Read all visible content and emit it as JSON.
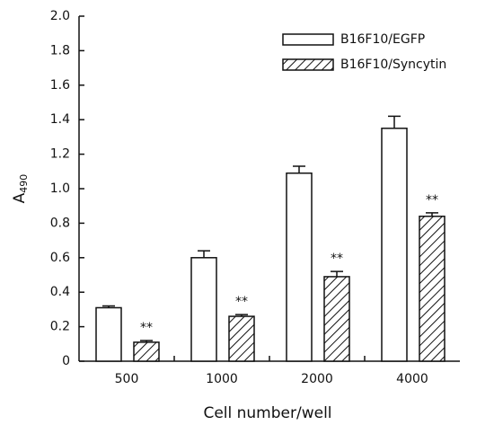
{
  "chart_data": {
    "type": "bar",
    "ylabel": {
      "text": "A",
      "subscript": "490"
    },
    "xlabel": "Cell number/well",
    "categories": [
      "500",
      "1000",
      "2000",
      "4000"
    ],
    "series": [
      {
        "name": "B16F10/EGFP",
        "color": "#ffffff",
        "pattern": "none",
        "values": [
          0.31,
          0.6,
          1.09,
          1.35
        ],
        "errors": [
          0.01,
          0.04,
          0.04,
          0.07
        ]
      },
      {
        "name": "B16F10/Syncytin",
        "color": "#ffffff",
        "pattern": "hatch",
        "values": [
          0.11,
          0.26,
          0.49,
          0.84
        ],
        "errors": [
          0.01,
          0.01,
          0.03,
          0.02
        ],
        "annotations": [
          "**",
          "**",
          "**",
          "**"
        ]
      }
    ],
    "ylim": [
      0,
      2
    ],
    "yticks": [
      0,
      0.2,
      0.4,
      0.6,
      0.8,
      {
        "value": 1,
        "label": "1.0"
      },
      1.2,
      1.4,
      1.6,
      1.8,
      {
        "value": 2,
        "label": "2.0"
      }
    ],
    "legend": "upper-right"
  }
}
